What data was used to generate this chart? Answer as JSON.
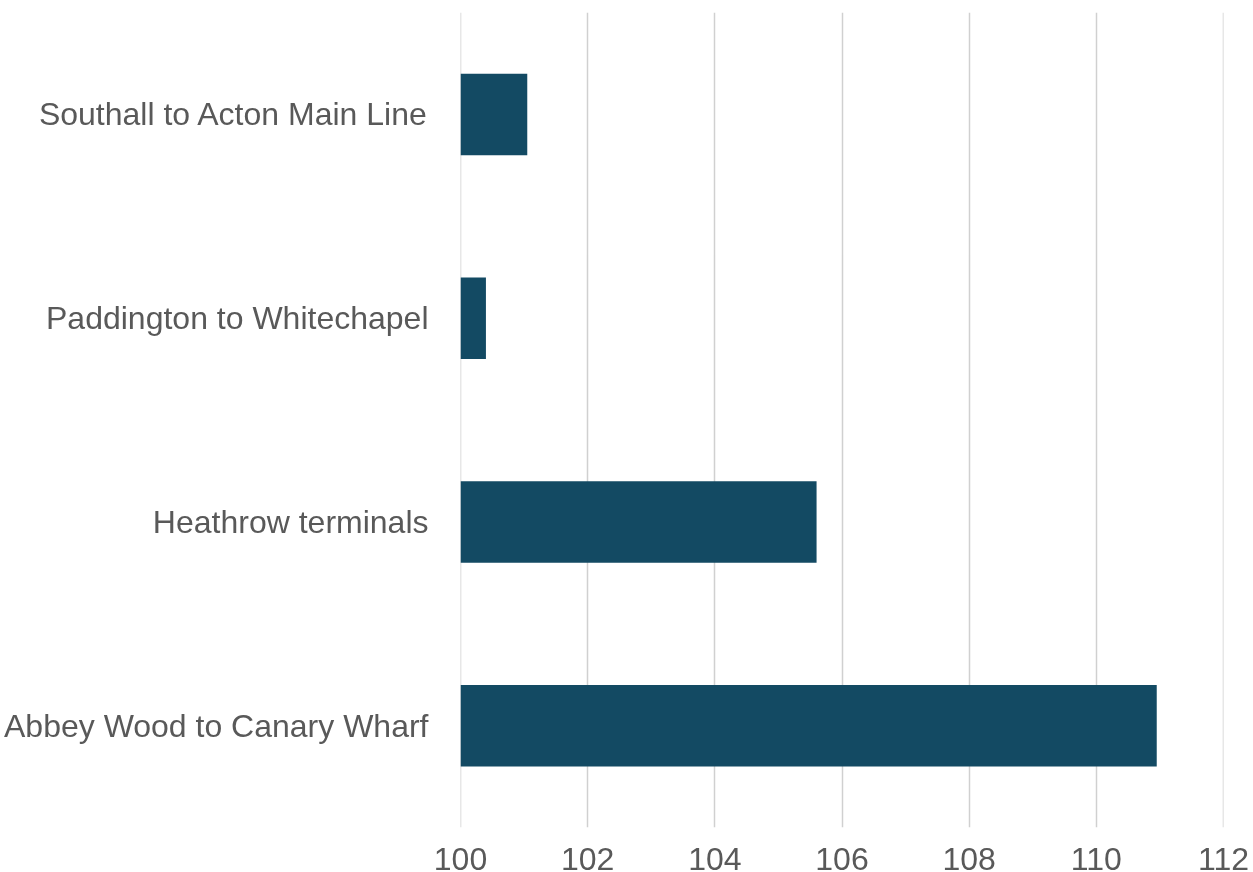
{
  "chart_data": {
    "type": "bar",
    "orientation": "horizontal",
    "categories": [
      "Southall to Acton Main Line",
      "Paddington to Whitechapel",
      "Heathrow terminals",
      "Abbey Wood to Canary Wharf"
    ],
    "values": [
      101.05,
      100.4,
      105.6,
      110.95
    ],
    "color": "#134a63",
    "xlim": [
      100,
      112
    ],
    "xticks": [
      100,
      102,
      104,
      106,
      108,
      110,
      112
    ],
    "grid": "x"
  }
}
